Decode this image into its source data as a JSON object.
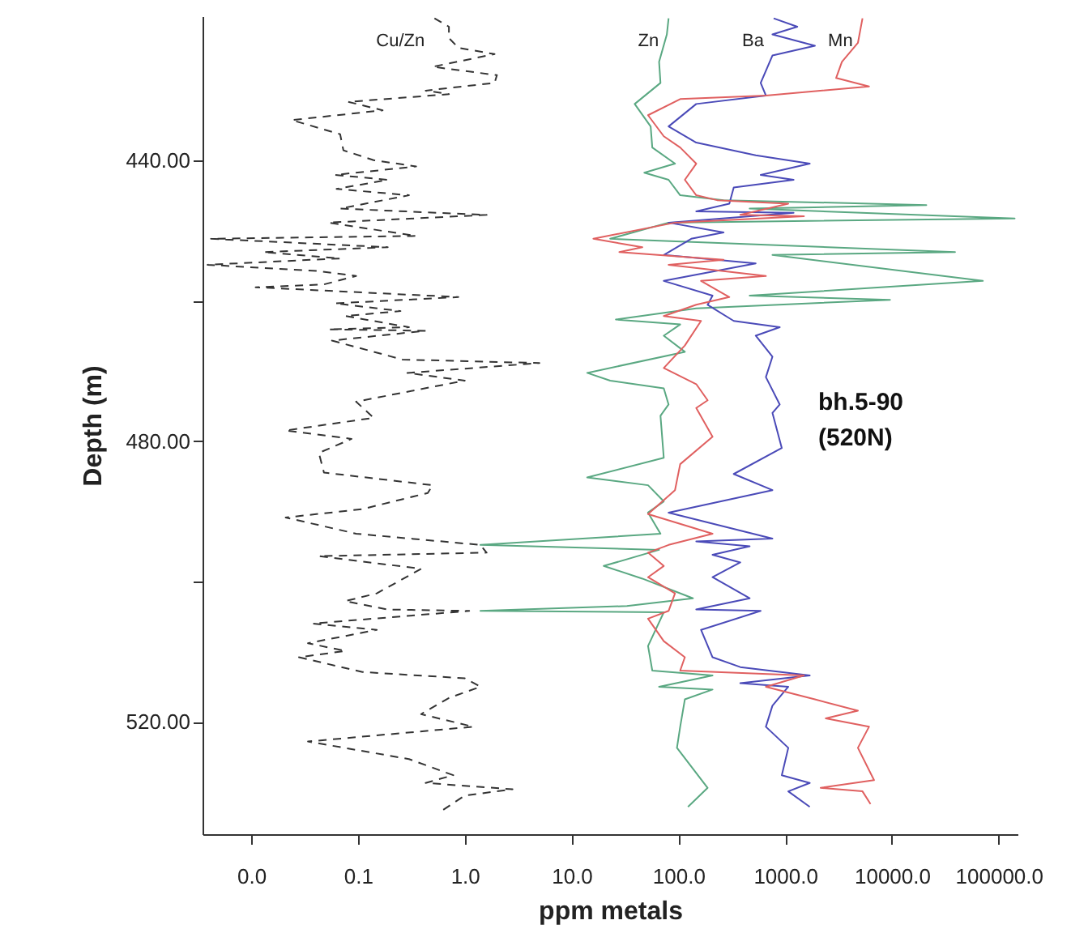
{
  "chart_data": {
    "type": "line",
    "xlabel": "ppm metals",
    "ylabel": "Depth (m)",
    "log": "x",
    "grid": false,
    "xlim": [
      0.0035,
      150000
    ],
    "ylim": [
      536,
      419.5
    ],
    "xticks": [
      {
        "value": 0.01,
        "label": "0.0"
      },
      {
        "value": 0.1,
        "label": "0.1"
      },
      {
        "value": 1,
        "label": "1.0"
      },
      {
        "value": 10,
        "label": "10.0"
      },
      {
        "value": 100,
        "label": "100.0"
      },
      {
        "value": 1000,
        "label": "1000.0"
      },
      {
        "value": 10000,
        "label": "10000.0"
      },
      {
        "value": 100000,
        "label": "100000.0"
      }
    ],
    "yticks": [
      {
        "value": 440,
        "label": "440.00"
      },
      {
        "value": 460,
        "label": null
      },
      {
        "value": 480,
        "label": "480.00"
      },
      {
        "value": 500,
        "label": null
      },
      {
        "value": 520,
        "label": "520.00"
      }
    ],
    "annotations": [
      "bh.5-90",
      "(520N)"
    ],
    "series": [
      {
        "name": "Cu/Zn",
        "color": "#333333",
        "line_style": "dashed",
        "x": [
          0.52,
          0.71,
          0.71,
          0.87,
          1.9,
          0.5,
          2.0,
          1.9,
          0.43,
          0.71,
          0.081,
          0.17,
          0.024,
          0.068,
          0.073,
          0.14,
          0.35,
          0.061,
          0.19,
          0.063,
          0.3,
          0.068,
          1.6,
          0.053,
          0.35,
          0.0042,
          0.19,
          0.013,
          0.068,
          0.0039,
          0.043,
          0.096,
          0.048,
          0.011,
          0.87,
          0.061,
          0.25,
          0.076,
          0.3,
          0.053,
          0.43,
          0.057,
          0.26,
          5.0,
          0.29,
          1.0,
          0.096,
          0.14,
          0.021,
          0.087,
          0.043,
          0.048,
          0.5,
          0.45,
          0.11,
          0.021,
          0.096,
          1.4,
          1.6,
          0.043,
          0.39,
          0.15,
          0.076,
          0.19,
          1.1,
          0.038,
          0.15,
          0.034,
          0.076,
          0.028,
          0.11,
          1.0,
          1.4,
          0.71,
          0.39,
          1.2,
          0.034,
          0.3,
          0.78,
          0.43,
          2.8,
          1.0,
          0.59
        ],
        "values": [
          419.8,
          421.0,
          422.6,
          424.0,
          424.9,
          426.7,
          427.9,
          429.0,
          430.1,
          430.6,
          431.7,
          432.9,
          434.3,
          436.3,
          438.6,
          440.0,
          440.9,
          442.1,
          442.8,
          444.1,
          445.0,
          446.9,
          447.8,
          448.9,
          450.8,
          451.2,
          452.4,
          453.1,
          454.0,
          454.9,
          455.8,
          456.5,
          457.7,
          458.1,
          459.5,
          460.4,
          461.5,
          462.2,
          463.8,
          464.1,
          464.3,
          465.7,
          468.4,
          468.9,
          470.3,
          471.4,
          474.4,
          476.7,
          478.5,
          479.7,
          481.7,
          484.5,
          486.3,
          487.4,
          489.7,
          490.9,
          493.2,
          494.8,
          495.9,
          496.4,
          498.2,
          501.7,
          502.8,
          504.0,
          504.2,
          506.0,
          506.9,
          508.8,
          509.9,
          510.8,
          512.9,
          513.8,
          515.0,
          516.6,
          518.9,
          520.7,
          522.8,
          525.3,
          527.6,
          528.7,
          529.6,
          530.5,
          532.8
        ]
      },
      {
        "name": "Zn",
        "color": "#5aa882",
        "line_style": "solid",
        "x": [
          81,
          78,
          66,
          68,
          39,
          55,
          57,
          93,
          48,
          81,
          104,
          265,
          21000,
          465,
          141000,
          81,
          23,
          39000,
          760,
          71000,
          465,
          9600,
          147,
          26,
          104,
          73,
          115,
          14,
          23,
          73,
          81,
          68,
          73,
          14,
          52,
          73,
          52,
          68,
          1.4,
          66,
          20,
          46,
          137,
          33,
          1.4,
          73,
          52,
          57,
          209,
          66,
          209,
          115,
          104,
          97,
          188,
          123
        ],
        "values": [
          419.8,
          422.1,
          426.0,
          429.0,
          432.0,
          435.2,
          438.2,
          440.5,
          441.8,
          442.8,
          445.0,
          445.7,
          446.4,
          446.9,
          448.3,
          448.9,
          451.2,
          453.1,
          453.5,
          457.2,
          459.3,
          459.9,
          461.1,
          462.7,
          463.4,
          465.0,
          467.3,
          470.3,
          471.4,
          472.5,
          474.8,
          476.4,
          482.4,
          485.2,
          486.3,
          488.6,
          490.2,
          493.2,
          494.8,
          495.5,
          497.8,
          499.6,
          502.4,
          503.5,
          504.2,
          504.4,
          509.2,
          512.7,
          513.4,
          515.0,
          515.4,
          516.8,
          520.7,
          523.7,
          529.4,
          532.1
        ]
      },
      {
        "name": "Ba",
        "color": "#4a4ab8",
        "line_style": "solid",
        "x": [
          780,
          1300,
          760,
          1900,
          760,
          590,
          660,
          147,
          81,
          147,
          530,
          1700,
          590,
          1200,
          330,
          300,
          147,
          1200,
          81,
          265,
          132,
          73,
          530,
          73,
          209,
          188,
          330,
          890,
          530,
          760,
          660,
          890,
          760,
          930,
          330,
          760,
          81,
          760,
          147,
          465,
          209,
          380,
          209,
          465,
          147,
          590,
          163,
          209,
          380,
          1700,
          380,
          1070,
          760,
          660,
          1070,
          930,
          1700,
          1070,
          1700
        ],
        "values": [
          419.8,
          421.0,
          422.1,
          423.7,
          425.1,
          429.0,
          430.8,
          432.0,
          435.2,
          437.5,
          439.3,
          440.5,
          442.1,
          442.8,
          443.9,
          446.2,
          447.3,
          447.5,
          448.9,
          450.3,
          451.2,
          453.5,
          454.7,
          457.2,
          459.3,
          460.6,
          462.9,
          463.8,
          465.0,
          468.0,
          470.9,
          474.8,
          476.0,
          481.0,
          484.7,
          487.0,
          490.2,
          493.9,
          494.3,
          495.0,
          496.2,
          497.3,
          499.4,
          502.4,
          504.0,
          504.2,
          506.9,
          510.8,
          512.2,
          513.4,
          514.5,
          515.0,
          517.7,
          520.7,
          523.7,
          527.6,
          528.7,
          529.9,
          532.1
        ]
      },
      {
        "name": "Mn",
        "color": "#e06060",
        "line_style": "solid",
        "x": [
          5300,
          4800,
          3400,
          3000,
          6100,
          660,
          104,
          52,
          73,
          104,
          147,
          115,
          147,
          230,
          1070,
          380,
          1500,
          93,
          16,
          46,
          28,
          265,
          81,
          660,
          163,
          300,
          147,
          73,
          163,
          115,
          73,
          147,
          188,
          147,
          209,
          104,
          93,
          52,
          209,
          81,
          52,
          73,
          52,
          93,
          81,
          52,
          73,
          115,
          104,
          1500,
          660,
          1900,
          4800,
          2400,
          6100,
          4800,
          6800,
          2150,
          5300,
          6300
        ],
        "values": [
          419.8,
          423.3,
          426.0,
          428.3,
          429.5,
          430.8,
          431.3,
          433.6,
          436.6,
          438.2,
          440.5,
          442.8,
          445.0,
          445.7,
          446.2,
          447.8,
          448.0,
          448.9,
          451.2,
          452.4,
          453.1,
          454.2,
          454.9,
          456.5,
          457.2,
          459.5,
          460.6,
          462.2,
          462.9,
          466.4,
          469.6,
          471.9,
          474.2,
          475.3,
          479.4,
          483.3,
          487.0,
          490.4,
          493.2,
          494.8,
          495.9,
          497.8,
          499.4,
          501.7,
          504.2,
          505.3,
          508.5,
          510.8,
          512.7,
          513.4,
          515.0,
          516.8,
          518.4,
          519.5,
          520.7,
          523.7,
          528.3,
          529.4,
          529.9,
          531.7
        ]
      }
    ]
  }
}
